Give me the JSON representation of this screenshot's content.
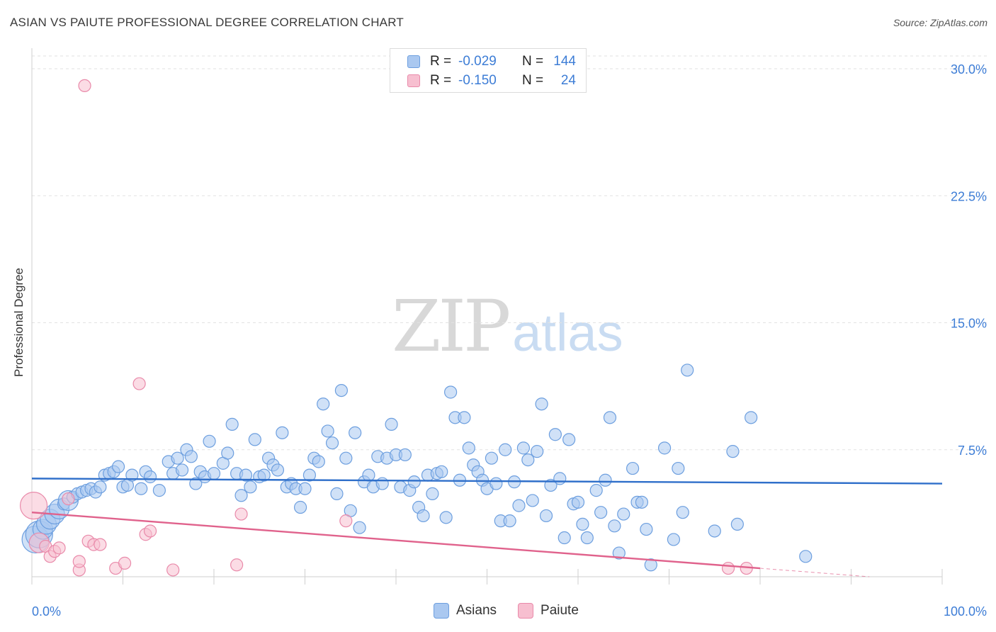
{
  "title": "ASIAN VS PAIUTE PROFESSIONAL DEGREE CORRELATION CHART",
  "source": "Source: ZipAtlas.com",
  "watermark": {
    "zip": "ZIP",
    "atlas": "atlas"
  },
  "legend_top": [
    {
      "r_label": "R =",
      "r_value": "-0.029",
      "n_label": "N =",
      "n_value": "144"
    },
    {
      "r_label": "R =",
      "r_value": "-0.150",
      "n_label": "N =",
      "n_value": "24"
    }
  ],
  "legend_bottom": [
    {
      "label": "Asians"
    },
    {
      "label": "Paiute"
    }
  ],
  "colors": {
    "asians_fill": "#aac8f0",
    "asians_stroke": "#6d9fdf",
    "asians_line": "#2f6fca",
    "paiute_fill": "#f7bfd0",
    "paiute_stroke": "#e98aaa",
    "paiute_line": "#e0628c",
    "grid": "#e2e2e2",
    "tick_label": "#3d7dd6"
  },
  "chart_data": {
    "type": "scatter",
    "title": "ASIAN VS PAIUTE PROFESSIONAL DEGREE CORRELATION CHART",
    "xlabel": "",
    "ylabel": "Professional Degree",
    "xlim": [
      0,
      100
    ],
    "ylim": [
      0,
      31.5
    ],
    "x_tick_labels": [
      "0.0%",
      "100.0%"
    ],
    "y_ticks": [
      7.5,
      15.0,
      22.5,
      30.0
    ],
    "y_tick_labels": [
      "7.5%",
      "15.0%",
      "22.5%",
      "30.0%"
    ],
    "grid": "horizontal dashed",
    "legend_position": "top-center",
    "series": [
      {
        "name": "Asians",
        "trend": {
          "x": [
            0,
            100
          ],
          "y": [
            5.8,
            5.5
          ]
        },
        "points": [
          [
            0.4,
            2.2,
            3
          ],
          [
            0.8,
            2.5,
            3
          ],
          [
            1.2,
            2.8,
            2
          ],
          [
            1.6,
            3.1,
            2
          ],
          [
            2.0,
            3.4,
            2
          ],
          [
            2.5,
            3.7,
            2
          ],
          [
            3.0,
            4.0,
            2
          ],
          [
            3.5,
            4.3,
            1
          ],
          [
            4.0,
            4.5,
            2
          ],
          [
            4.5,
            4.7,
            1
          ],
          [
            5.0,
            4.9,
            1
          ],
          [
            5.5,
            5.0,
            1
          ],
          [
            6.0,
            5.1,
            1
          ],
          [
            6.5,
            5.2,
            1
          ],
          [
            7.0,
            5.0,
            1
          ],
          [
            7.5,
            5.3,
            1
          ],
          [
            8.0,
            6.0,
            1
          ],
          [
            8.5,
            6.1,
            1
          ],
          [
            9.0,
            6.2,
            1
          ],
          [
            9.5,
            6.5,
            1
          ],
          [
            10.0,
            5.3,
            1
          ],
          [
            10.5,
            5.4,
            1
          ],
          [
            11.0,
            6.0,
            1
          ],
          [
            12.0,
            5.2,
            1
          ],
          [
            12.5,
            6.2,
            1
          ],
          [
            13.0,
            5.9,
            1
          ],
          [
            14.0,
            5.1,
            1
          ],
          [
            15.0,
            6.8,
            1
          ],
          [
            15.5,
            6.1,
            1
          ],
          [
            16.0,
            7.0,
            1
          ],
          [
            16.5,
            6.3,
            1
          ],
          [
            17.0,
            7.5,
            1
          ],
          [
            17.5,
            7.1,
            1
          ],
          [
            18.0,
            5.5,
            1
          ],
          [
            18.5,
            6.2,
            1
          ],
          [
            19.0,
            5.9,
            1
          ],
          [
            19.5,
            8.0,
            1
          ],
          [
            20.0,
            6.1,
            1
          ],
          [
            21.0,
            6.7,
            1
          ],
          [
            21.5,
            7.3,
            1
          ],
          [
            22.0,
            9.0,
            1
          ],
          [
            22.5,
            6.1,
            1
          ],
          [
            23.0,
            4.8,
            1
          ],
          [
            23.5,
            6.0,
            1
          ],
          [
            24.0,
            5.3,
            1
          ],
          [
            24.5,
            8.1,
            1
          ],
          [
            25.0,
            5.9,
            1
          ],
          [
            25.5,
            6.0,
            1
          ],
          [
            26.0,
            7.0,
            1
          ],
          [
            26.5,
            6.6,
            1
          ],
          [
            27.0,
            6.3,
            1
          ],
          [
            27.5,
            8.5,
            1
          ],
          [
            28.0,
            5.3,
            1
          ],
          [
            28.5,
            5.5,
            1
          ],
          [
            29.0,
            5.2,
            1
          ],
          [
            29.5,
            4.1,
            1
          ],
          [
            30.0,
            5.2,
            1
          ],
          [
            30.5,
            6.0,
            1
          ],
          [
            31.0,
            7.0,
            1
          ],
          [
            31.5,
            6.8,
            1
          ],
          [
            32.0,
            10.2,
            1
          ],
          [
            32.5,
            8.6,
            1
          ],
          [
            33.0,
            7.9,
            1
          ],
          [
            33.5,
            4.9,
            1
          ],
          [
            34.0,
            11.0,
            1
          ],
          [
            34.5,
            7.0,
            1
          ],
          [
            35.0,
            3.9,
            1
          ],
          [
            35.5,
            8.5,
            1
          ],
          [
            36.0,
            2.9,
            1
          ],
          [
            36.5,
            5.6,
            1
          ],
          [
            37.0,
            6.0,
            1
          ],
          [
            37.5,
            5.3,
            1
          ],
          [
            38.0,
            7.1,
            1
          ],
          [
            38.5,
            5.5,
            1
          ],
          [
            39.0,
            7.0,
            1
          ],
          [
            39.5,
            9.0,
            1
          ],
          [
            40.0,
            7.2,
            1
          ],
          [
            40.5,
            5.3,
            1
          ],
          [
            41.0,
            7.2,
            1
          ],
          [
            41.5,
            5.1,
            1
          ],
          [
            42.0,
            5.6,
            1
          ],
          [
            42.5,
            4.1,
            1
          ],
          [
            43.0,
            3.6,
            1
          ],
          [
            43.5,
            6.0,
            1
          ],
          [
            44.0,
            4.9,
            1
          ],
          [
            44.5,
            6.1,
            1
          ],
          [
            45.0,
            6.2,
            1
          ],
          [
            45.5,
            3.5,
            1
          ],
          [
            46.0,
            10.9,
            1
          ],
          [
            46.5,
            9.4,
            1
          ],
          [
            47.0,
            5.7,
            1
          ],
          [
            47.5,
            9.4,
            1
          ],
          [
            48.0,
            7.6,
            1
          ],
          [
            48.5,
            6.6,
            1
          ],
          [
            49.0,
            6.2,
            1
          ],
          [
            49.5,
            5.7,
            1
          ],
          [
            50.0,
            5.2,
            1
          ],
          [
            50.5,
            7.0,
            1
          ],
          [
            51.0,
            5.5,
            1
          ],
          [
            51.5,
            3.3,
            1
          ],
          [
            52.0,
            7.5,
            1
          ],
          [
            52.5,
            3.3,
            1
          ],
          [
            53.0,
            5.6,
            1
          ],
          [
            53.5,
            4.2,
            1
          ],
          [
            54.0,
            7.6,
            1
          ],
          [
            54.5,
            6.9,
            1
          ],
          [
            55.0,
            4.5,
            1
          ],
          [
            55.5,
            7.4,
            1
          ],
          [
            56.0,
            10.2,
            1
          ],
          [
            56.5,
            3.6,
            1
          ],
          [
            57.0,
            5.4,
            1
          ],
          [
            57.5,
            8.4,
            1
          ],
          [
            58.0,
            5.8,
            1
          ],
          [
            58.5,
            2.3,
            1
          ],
          [
            59.0,
            8.1,
            1
          ],
          [
            59.5,
            4.3,
            1
          ],
          [
            60.0,
            4.4,
            1
          ],
          [
            60.5,
            3.1,
            1
          ],
          [
            61.0,
            2.3,
            1
          ],
          [
            62.0,
            5.1,
            1
          ],
          [
            62.5,
            3.8,
            1
          ],
          [
            63.0,
            5.7,
            1
          ],
          [
            63.5,
            9.4,
            1
          ],
          [
            64.0,
            3.0,
            1
          ],
          [
            64.5,
            1.4,
            1
          ],
          [
            65.0,
            3.7,
            1
          ],
          [
            66.0,
            6.4,
            1
          ],
          [
            66.5,
            4.4,
            1
          ],
          [
            67.0,
            4.4,
            1
          ],
          [
            67.5,
            2.8,
            1
          ],
          [
            68.0,
            0.7,
            1
          ],
          [
            69.5,
            7.6,
            1
          ],
          [
            70.5,
            2.2,
            1
          ],
          [
            71.0,
            6.4,
            1
          ],
          [
            71.5,
            3.8,
            1
          ],
          [
            72.0,
            12.2,
            1
          ],
          [
            75.0,
            2.7,
            1
          ],
          [
            77.0,
            7.4,
            1
          ],
          [
            77.5,
            3.1,
            1
          ],
          [
            79.0,
            9.4,
            1
          ],
          [
            85.0,
            1.2,
            1
          ]
        ]
      },
      {
        "name": "Paiute",
        "trend": {
          "x": [
            0,
            80
          ],
          "y": [
            3.8,
            0.5
          ]
        },
        "trend_extension": {
          "x": [
            80,
            92
          ],
          "y": [
            0.5,
            0.0
          ]
        },
        "points": [
          [
            0.2,
            4.2,
            3
          ],
          [
            0.8,
            2.0,
            2
          ],
          [
            1.5,
            1.8,
            1
          ],
          [
            2.0,
            1.2,
            1
          ],
          [
            2.5,
            1.5,
            1
          ],
          [
            3.0,
            1.7,
            1
          ],
          [
            4.0,
            4.6,
            1
          ],
          [
            5.2,
            0.4,
            1
          ],
          [
            5.2,
            0.9,
            1
          ],
          [
            6.2,
            2.1,
            1
          ],
          [
            6.8,
            1.9,
            1
          ],
          [
            7.5,
            1.9,
            1
          ],
          [
            9.2,
            0.5,
            1
          ],
          [
            10.2,
            0.8,
            1
          ],
          [
            11.8,
            11.4,
            1
          ],
          [
            12.5,
            2.5,
            1
          ],
          [
            13.0,
            2.7,
            1
          ],
          [
            15.5,
            0.4,
            1
          ],
          [
            22.5,
            0.7,
            1
          ],
          [
            23.0,
            3.7,
            1
          ],
          [
            34.5,
            3.3,
            1
          ],
          [
            76.5,
            0.5,
            1
          ],
          [
            78.5,
            0.5,
            1
          ],
          [
            5.8,
            29.0,
            1
          ]
        ]
      }
    ]
  }
}
